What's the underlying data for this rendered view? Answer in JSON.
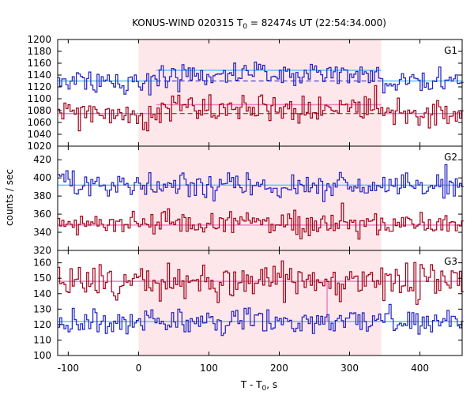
{
  "title": {
    "main": "KONUS-WIND 020315 T",
    "sub": "0",
    "rest": " = 82474s UT (22:54:34.000)"
  },
  "colors": {
    "red": "#a00018",
    "blue": "#2020c0",
    "pink_fit": "#f080c0",
    "cyan_fit": "#60c0ff",
    "highlight": "#fde7ea"
  },
  "chart_data": {
    "type": "line",
    "xlabel": "T - T0, s",
    "ylabel": "counts / sec",
    "xlim": [
      -115,
      460
    ],
    "xticks": [
      -100,
      0,
      100,
      200,
      300,
      400
    ],
    "highlight_interval": [
      0,
      345
    ],
    "panels": [
      {
        "name": "G1",
        "ylim": [
          1020,
          1200
        ],
        "yticks": [
          1020,
          1040,
          1060,
          1080,
          1100,
          1120,
          1140,
          1160,
          1180,
          1200
        ],
        "bg_blue": 1130,
        "bg_red": 1075,
        "fit_blue": 1148,
        "fit_red": 1090,
        "blue_base": 1140,
        "blue_amp": 13,
        "blue_base_out": 1128,
        "red_base": 1085,
        "red_amp": 14,
        "red_base_out": 1073,
        "seed_blue": 11,
        "seed_red": 23
      },
      {
        "name": "G2",
        "ylim": [
          320,
          435
        ],
        "yticks": [
          320,
          340,
          360,
          380,
          400,
          420
        ],
        "bg_blue": 392,
        "bg_red": 348,
        "fit_blue": 392,
        "fit_red": 348,
        "blue_base": 392,
        "blue_amp": 9,
        "blue_base_out": 392,
        "red_base": 349,
        "red_amp": 8,
        "red_base_out": 349,
        "seed_blue": 37,
        "seed_red": 41
      },
      {
        "name": "G3",
        "ylim": [
          100,
          168
        ],
        "yticks": [
          100,
          110,
          120,
          130,
          140,
          150,
          160
        ],
        "bg_blue": 122,
        "bg_red": 148,
        "fit_blue": 122,
        "fit_red": 148,
        "blue_base": 122,
        "blue_amp": 5,
        "blue_base_out": 122,
        "red_base": 148,
        "red_amp": 6,
        "red_base_out": 148,
        "seed_blue": 53,
        "seed_red": 67
      }
    ]
  }
}
